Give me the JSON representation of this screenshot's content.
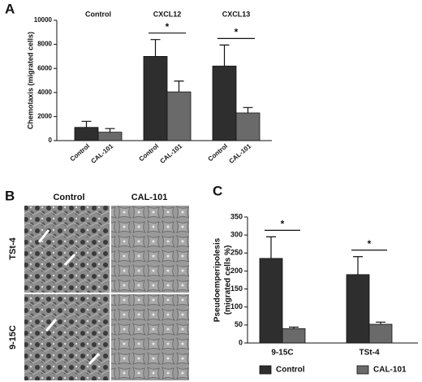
{
  "panel_labels": [
    "A",
    "B",
    "C"
  ],
  "micrographs": {
    "columns": [
      "Control",
      "CAL-101"
    ],
    "rows": [
      "TSt-4",
      "9-15C"
    ]
  },
  "chart_data": [
    {
      "type": "bar",
      "ylabel": "Chemotaxis (migrated cells)",
      "categories": [
        "Control",
        "CXCL12",
        "CXCL13"
      ],
      "series": [
        {
          "name": "Control",
          "color": "#2e2e2e",
          "values": [
            1100,
            7000,
            6200
          ],
          "errors": [
            500,
            1400,
            1750
          ]
        },
        {
          "name": "CAL-101",
          "color": "#6a6a6a",
          "values": [
            700,
            4050,
            2300
          ],
          "errors": [
            300,
            900,
            450
          ]
        }
      ],
      "significance": [
        null,
        "*",
        "*"
      ],
      "ylim": [
        0,
        10000
      ],
      "yticks": [
        0,
        2000,
        4000,
        6000,
        8000,
        10000
      ]
    },
    {
      "type": "bar",
      "ylabel": [
        "Pseudoemperipolesis",
        "(migrated cells %)"
      ],
      "categories": [
        "9-15C",
        "TSt-4"
      ],
      "series": [
        {
          "name": "Control",
          "color": "#2e2e2e",
          "values": [
            235,
            190
          ],
          "errors": [
            60,
            50
          ]
        },
        {
          "name": "CAL-101",
          "color": "#6a6a6a",
          "values": [
            40,
            52
          ],
          "errors": [
            4,
            6
          ]
        }
      ],
      "significance": [
        "*",
        "*"
      ],
      "ylim": [
        0,
        350
      ],
      "yticks": [
        0,
        50,
        100,
        150,
        200,
        250,
        300,
        350
      ],
      "legend": "bottom"
    }
  ]
}
